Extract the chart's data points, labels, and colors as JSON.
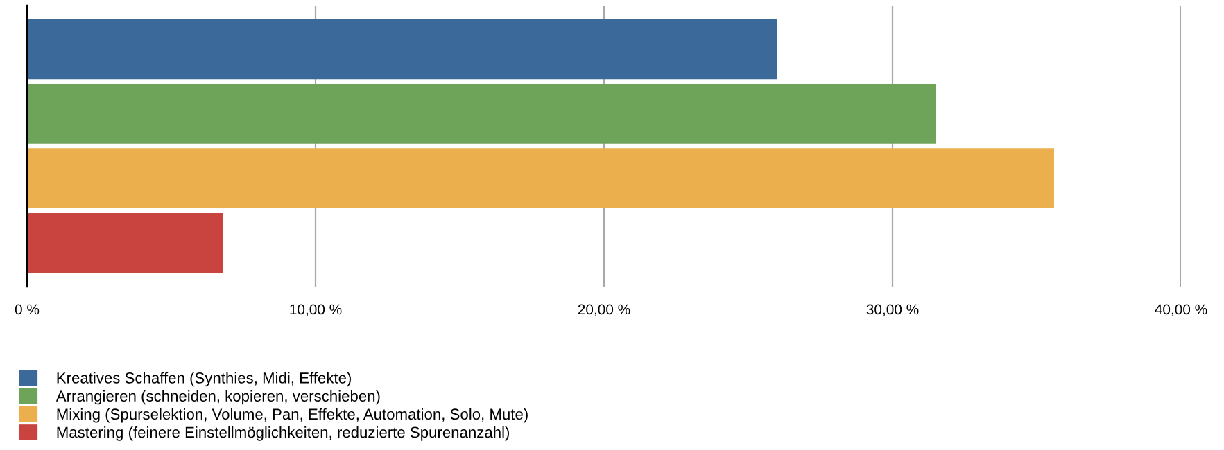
{
  "chart_data": {
    "type": "bar",
    "orientation": "horizontal",
    "categories": [
      null
    ],
    "series": [
      {
        "name": "Kreatives Schaffen (Synthies, Midi, Effekte)",
        "color": "#3b6a9a",
        "values": [
          26.0
        ]
      },
      {
        "name": "Arrangieren (schneiden, kopieren, verschieben)",
        "color": "#6ea459",
        "values": [
          31.5
        ]
      },
      {
        "name": "Mixing (Spurselektion, Volume, Pan, Effekte, Automation, Solo, Mute)",
        "color": "#ecaf4d",
        "values": [
          35.6
        ]
      },
      {
        "name": "Mastering (feinere Einstellmöglichkeiten, reduzierte Spurenanzahl)",
        "color": "#c9433f",
        "values": [
          6.8
        ]
      }
    ],
    "xlim": [
      0,
      40
    ],
    "xticks": [
      {
        "value": 0,
        "label": "0 %"
      },
      {
        "value": 10,
        "label": "10,00 %"
      },
      {
        "value": 20,
        "label": "20,00 %"
      },
      {
        "value": 30,
        "label": "30,00 %"
      },
      {
        "value": 40,
        "label": "40,00 %"
      }
    ],
    "grid": "x",
    "legend": "bottom left"
  }
}
